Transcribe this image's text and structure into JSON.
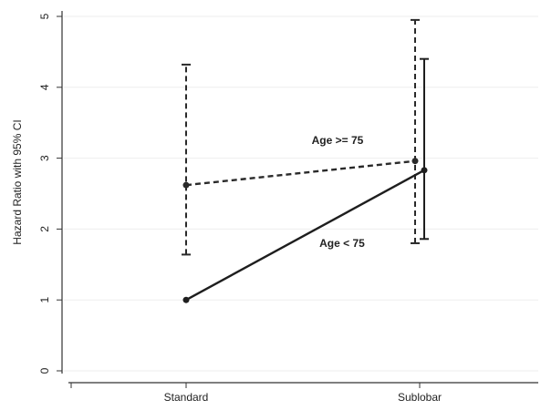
{
  "chart_data": {
    "type": "line",
    "y_label": "Hazard Ratio with 95% CI",
    "categories": [
      "Standard",
      "Sublobar"
    ],
    "series": [
      {
        "name": "Age >= 75",
        "color": "#2a2a2a",
        "dash": "dashed",
        "values": [
          2.62,
          2.96
        ],
        "lower": [
          1.64,
          1.8
        ],
        "upper": [
          4.32,
          4.95
        ]
      },
      {
        "name": "Age < 75",
        "color": "#1e1e1e",
        "dash": "solid",
        "values": [
          1.0,
          2.83
        ],
        "lower": [
          null,
          1.86
        ],
        "upper": [
          null,
          4.4
        ]
      }
    ],
    "ylim": [
      0,
      5
    ],
    "yticks": [
      0,
      1,
      2,
      3,
      4,
      5
    ],
    "grid": true
  }
}
